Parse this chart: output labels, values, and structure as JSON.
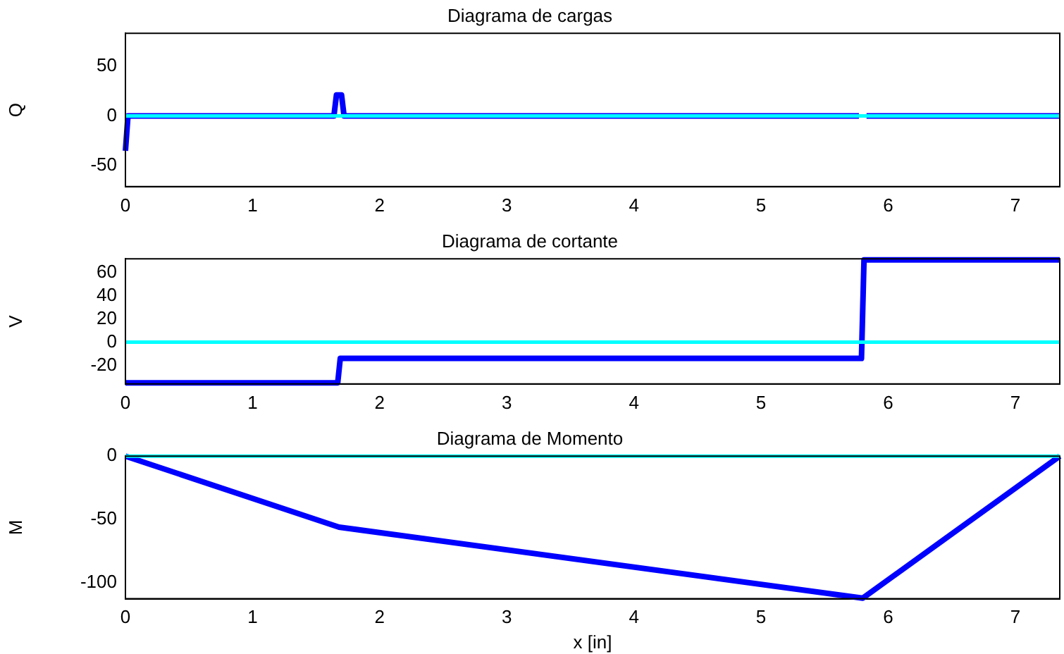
{
  "chart_data": [
    {
      "type": "line",
      "title": "Diagrama de cargas",
      "ylabel": "Q",
      "xlim": [
        0,
        7.35
      ],
      "xticks": [
        0,
        1,
        2,
        3,
        4,
        5,
        6,
        7
      ],
      "ylim": [
        -71,
        83
      ],
      "yticks": [
        -50,
        0,
        50
      ],
      "grid": false,
      "legend": false,
      "marker": "none",
      "line_style": "solid",
      "series": [
        {
          "color": "#0000ff",
          "x": [
            0,
            0.02,
            1.64,
            1.66,
            1.7,
            1.72,
            5.77,
            5.785,
            5.815,
            5.83,
            7.35
          ],
          "values": [
            -35,
            0,
            0,
            21,
            21,
            0,
            0,
            null,
            null,
            0,
            0
          ]
        },
        {
          "color": "#00ffff",
          "x": [
            0,
            7.35
          ],
          "values": [
            0,
            0
          ]
        }
      ]
    },
    {
      "type": "line",
      "title": "Diagrama de cortante",
      "ylabel": "V",
      "xlim": [
        0,
        7.35
      ],
      "xticks": [
        0,
        1,
        2,
        3,
        4,
        5,
        6,
        7
      ],
      "ylim": [
        -36,
        72
      ],
      "yticks": [
        -20,
        0,
        20,
        40,
        60
      ],
      "grid": false,
      "legend": false,
      "marker": "none",
      "line_style": "solid",
      "series": [
        {
          "color": "#0000ff",
          "x": [
            0,
            1.67,
            1.69,
            5.79,
            5.81,
            7.35
          ],
          "values": [
            -35,
            -35,
            -14,
            -14,
            71,
            71
          ]
        },
        {
          "color": "#00ffff",
          "x": [
            0,
            7.35
          ],
          "values": [
            0,
            0
          ]
        }
      ]
    },
    {
      "type": "line",
      "title": "Diagrama de Momento",
      "ylabel": "M",
      "xlabel": "x [in]",
      "xlim": [
        0,
        7.35
      ],
      "xticks": [
        0,
        1,
        2,
        3,
        4,
        5,
        6,
        7
      ],
      "ylim": [
        -112.5,
        0
      ],
      "yticks": [
        -100,
        -50,
        0
      ],
      "grid": false,
      "legend": false,
      "marker": "none",
      "line_style": "solid",
      "series": [
        {
          "color": "#0000ff",
          "x": [
            0,
            1.68,
            5.8,
            7.35
          ],
          "values": [
            0,
            -56,
            -112,
            0
          ]
        },
        {
          "color": "#00ffff",
          "x": [
            0,
            7.35
          ],
          "values": [
            0,
            0
          ]
        }
      ]
    }
  ]
}
